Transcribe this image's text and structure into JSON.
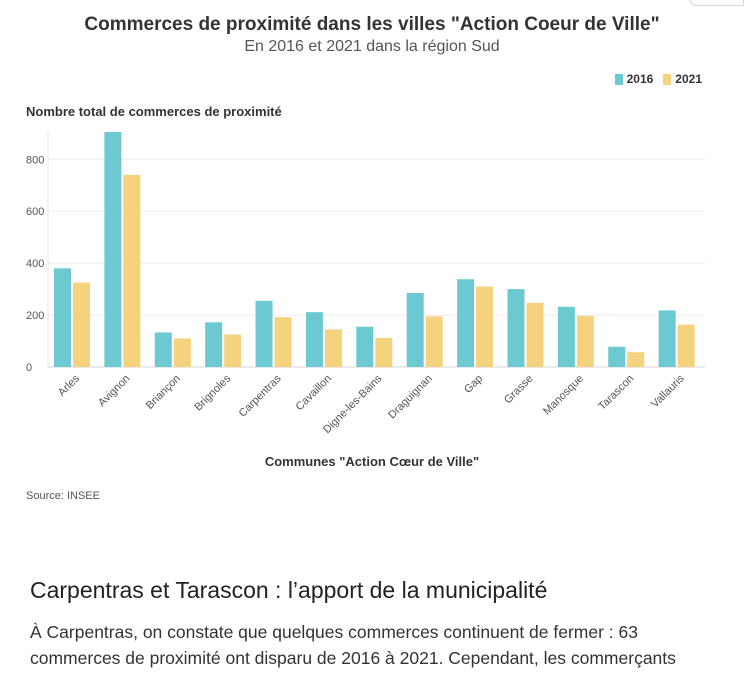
{
  "chart_data": {
    "type": "bar",
    "title": "Commerces de proximité dans les villes \"Action Coeur de Ville\"",
    "subtitle": "En 2016 et 2021 dans la région Sud",
    "ylabel": "Nombre total de commerces de proximité",
    "xlabel": "Communes \"Action Cœur de Ville\"",
    "categories": [
      "Arles",
      "Avignon",
      "Briançon",
      "Brignoles",
      "Carpentras",
      "Cavaillon",
      "Digne-les-Bains",
      "Draguignan",
      "Gap",
      "Grasse",
      "Manosque",
      "Tarascon",
      "Vallauris"
    ],
    "series": [
      {
        "name": "2016",
        "color": "#6cc9d1",
        "values": [
          380,
          905,
          133,
          172,
          255,
          211,
          155,
          285,
          338,
          300,
          232,
          78,
          218
        ]
      },
      {
        "name": "2021",
        "color": "#f5d27e",
        "values": [
          325,
          740,
          110,
          125,
          192,
          145,
          112,
          195,
          310,
          247,
          197,
          57,
          163
        ]
      }
    ],
    "ylim": [
      0,
      905
    ],
    "yticks": [
      0,
      200,
      400,
      600,
      800
    ],
    "grid": true,
    "legend_position": "top-right",
    "source": "Source: INSEE"
  },
  "article": {
    "heading": "Carpentras et Tarascon : l’apport de la municipalité",
    "text": "À Carpentras, on constate que quelques commerces continuent de fermer : 63 commerces de proximité ont disparu de 2016 à 2021. Cependant, les commerçants"
  }
}
